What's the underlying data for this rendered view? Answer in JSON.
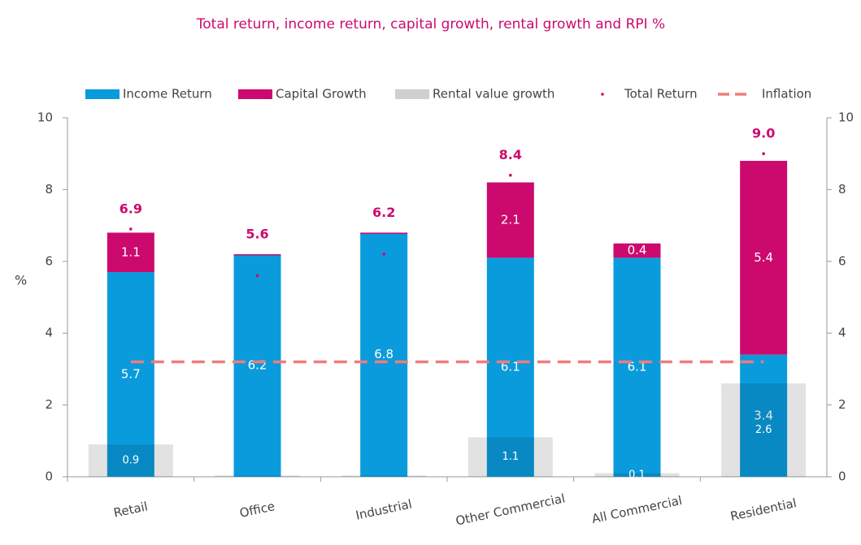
{
  "chart_data": {
    "type": "stacked-bar-line",
    "title": "Total return, income return, capital growth, rental growth and RPI %",
    "y_label": "%",
    "categories": [
      "Retail",
      "Office",
      "Industrial",
      "Other Commercial",
      "All Commercial",
      "Residential"
    ],
    "series": [
      {
        "name": "Income Return",
        "color": "#0a9bdc",
        "kind": "stack",
        "values": [
          5.7,
          6.2,
          6.8,
          6.1,
          6.1,
          3.4
        ]
      },
      {
        "name": "Capital Growth",
        "color": "#cc0a6e",
        "kind": "stack",
        "values": [
          1.1,
          0,
          0,
          2.1,
          0.4,
          5.4
        ]
      },
      {
        "name": "Rental value growth",
        "color": "#cfcfcf",
        "kind": "wide",
        "values": [
          0.9,
          0,
          0,
          1.1,
          0.1,
          2.6
        ]
      },
      {
        "name": "Total Return",
        "color": "#cc0a6e",
        "kind": "dot",
        "values": [
          6.9,
          5.6,
          6.2,
          8.4,
          null,
          9.0
        ],
        "value_labels": [
          "6.9",
          "5.6",
          "6.2",
          "8.4",
          null,
          "9.0"
        ]
      },
      {
        "name": "Inflation",
        "color": "#f07c7c",
        "kind": "dash",
        "values": [
          3.2,
          3.2,
          3.2,
          3.2,
          3.2,
          3.2
        ]
      }
    ],
    "ylim": [
      0,
      10
    ],
    "yticks": [
      0,
      2,
      4,
      6,
      8,
      10
    ],
    "y2lim": [
      0,
      10
    ],
    "y2ticks": [
      0,
      2,
      4,
      6,
      8,
      10
    ]
  }
}
